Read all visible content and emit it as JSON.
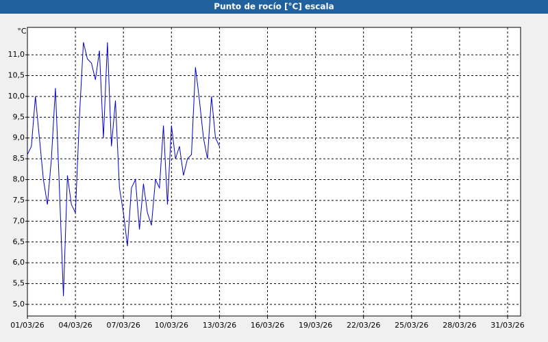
{
  "chart_data": {
    "type": "line",
    "title": "Punto de rocío [°C] escala",
    "y_label": "°C",
    "x": [
      "2026-03-01T00:00",
      "2026-03-01T06:00",
      "2026-03-01T12:00",
      "2026-03-01T18:00",
      "2026-03-02T00:00",
      "2026-03-02T06:00",
      "2026-03-02T12:00",
      "2026-03-02T18:00",
      "2026-03-03T00:00",
      "2026-03-03T06:00",
      "2026-03-03T12:00",
      "2026-03-03T18:00",
      "2026-03-04T00:00",
      "2026-03-04T06:00",
      "2026-03-04T12:00",
      "2026-03-04T18:00",
      "2026-03-05T00:00",
      "2026-03-05T06:00",
      "2026-03-05T12:00",
      "2026-03-05T18:00",
      "2026-03-06T00:00",
      "2026-03-06T06:00",
      "2026-03-06T12:00",
      "2026-03-06T18:00",
      "2026-03-07T00:00",
      "2026-03-07T06:00",
      "2026-03-07T12:00",
      "2026-03-07T18:00",
      "2026-03-08T00:00",
      "2026-03-08T06:00",
      "2026-03-08T12:00",
      "2026-03-08T18:00",
      "2026-03-09T00:00",
      "2026-03-09T06:00",
      "2026-03-09T12:00",
      "2026-03-09T18:00",
      "2026-03-10T00:00",
      "2026-03-10T06:00",
      "2026-03-10T12:00",
      "2026-03-10T18:00",
      "2026-03-11T00:00",
      "2026-03-11T06:00",
      "2026-03-11T12:00",
      "2026-03-11T18:00",
      "2026-03-12T00:00",
      "2026-03-12T06:00",
      "2026-03-12T12:00",
      "2026-03-12T18:00",
      "2026-03-13T00:00"
    ],
    "series": [
      {
        "color": "#0000c8",
        "values": [
          8.6,
          8.8,
          10.0,
          9.0,
          8.0,
          7.4,
          8.5,
          10.2,
          7.8,
          5.2,
          8.1,
          7.4,
          7.2,
          9.5,
          11.3,
          10.9,
          10.8,
          10.4,
          11.1,
          9.0,
          11.3,
          8.8,
          9.9,
          7.8,
          7.2,
          6.4,
          7.8,
          8.0,
          6.8,
          7.9,
          7.2,
          6.9,
          8.0,
          7.8,
          9.3,
          7.4,
          9.3,
          8.5,
          8.8,
          8.1,
          8.5,
          8.6,
          10.7,
          9.9,
          9.0,
          8.5,
          10.0,
          9.0,
          8.8
        ]
      }
    ],
    "xlim": [
      "2026-03-01T00:00",
      "2026-03-31T19:30"
    ],
    "xticks": [
      {
        "value": "2026-03-01",
        "label": "01/03/26"
      },
      {
        "value": "2026-03-04",
        "label": "04/03/26"
      },
      {
        "value": "2026-03-07",
        "label": "07/03/26"
      },
      {
        "value": "2026-03-10",
        "label": "10/03/26"
      },
      {
        "value": "2026-03-13",
        "label": "13/03/26"
      },
      {
        "value": "2026-03-16",
        "label": "16/03/26"
      },
      {
        "value": "2026-03-19",
        "label": "19/03/26"
      },
      {
        "value": "2026-03-22",
        "label": "22/03/26"
      },
      {
        "value": "2026-03-25",
        "label": "25/03/26"
      },
      {
        "value": "2026-03-28",
        "label": "28/03/26"
      },
      {
        "value": "2026-03-31",
        "label": "31/03/26"
      }
    ],
    "ylim": [
      4.72,
      11.66
    ],
    "yticks": [
      {
        "value": 5,
        "label": "5,0"
      },
      {
        "value": 5.5,
        "label": "5,5"
      },
      {
        "value": 6,
        "label": "6,0"
      },
      {
        "value": 6.5,
        "label": "6,5"
      },
      {
        "value": 7,
        "label": "7,0"
      },
      {
        "value": 7.5,
        "label": "7,5"
      },
      {
        "value": 8,
        "label": "8,0"
      },
      {
        "value": 8.5,
        "label": "8,5"
      },
      {
        "value": 9,
        "label": "9,0"
      },
      {
        "value": 9.5,
        "label": "9,5"
      },
      {
        "value": 10,
        "label": "10,0"
      },
      {
        "value": 10.5,
        "label": "10,5"
      },
      {
        "value": 11,
        "label": "11,0"
      }
    ],
    "grid": true
  }
}
